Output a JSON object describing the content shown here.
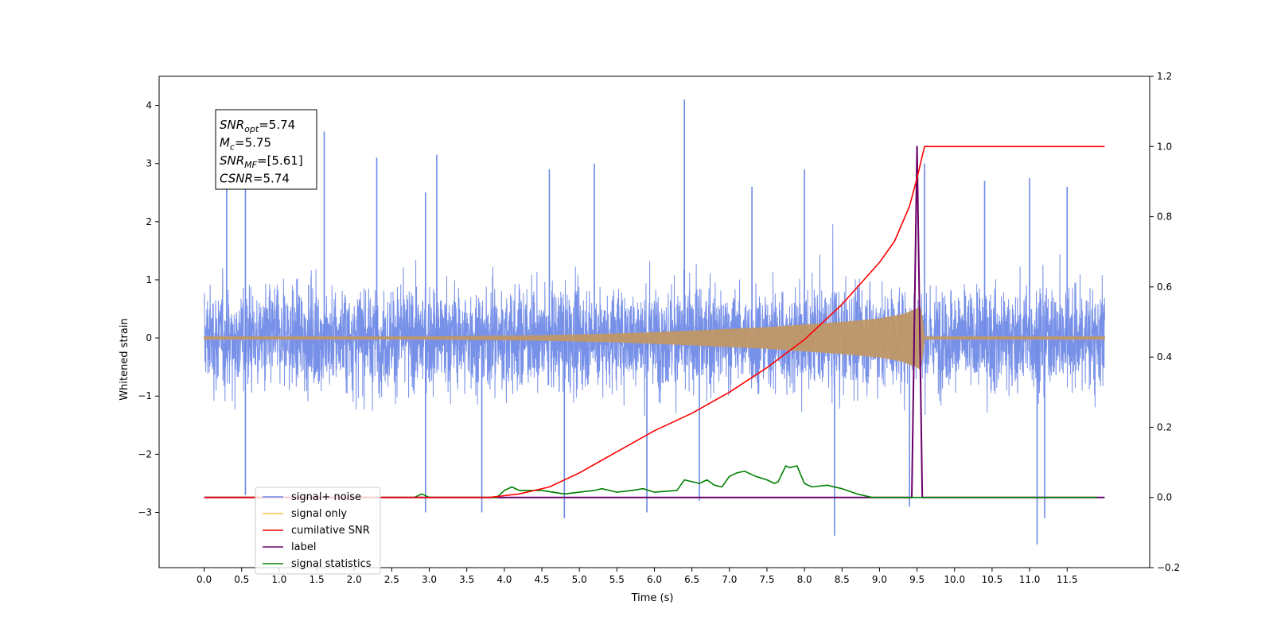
{
  "chart_data": {
    "type": "line",
    "xlabel": "Time (s)",
    "ylabel": "Whitened strain",
    "xlim": [
      -0.6,
      12.6
    ],
    "ylim": [
      -3.95,
      4.5
    ],
    "y2lim": [
      -0.2,
      1.2
    ],
    "x_ticks": [
      "0.0",
      "0.5",
      "1.0",
      "1.5",
      "2.0",
      "2.5",
      "3.0",
      "3.5",
      "4.0",
      "4.5",
      "5.0",
      "5.5",
      "6.0",
      "6.5",
      "7.0",
      "7.5",
      "8.0",
      "8.5",
      "9.0",
      "9.5",
      "10.0",
      "10.5",
      "11.0",
      "11.5"
    ],
    "y_ticks": [
      "−3",
      "−2",
      "−1",
      "0",
      "1",
      "2",
      "3",
      "4"
    ],
    "y2_ticks": [
      "−0.2",
      "0.0",
      "0.2",
      "0.4",
      "0.6",
      "0.8",
      "1.0",
      "1.2"
    ],
    "grid": false,
    "legend_position": "lower-left",
    "annotation": {
      "lines": [
        {
          "base": "SNR",
          "sub": "opt",
          "rest": "=5.74"
        },
        {
          "base": "M",
          "sub": "c",
          "rest": "=5.75"
        },
        {
          "base": "SNR",
          "sub": "MF",
          "rest": "=[5.61]"
        },
        {
          "base": "CSNR",
          "sub": "",
          "rest": "=5.74"
        }
      ]
    },
    "series": [
      {
        "name": "signal+ noise",
        "color": "#6c88e6",
        "axis": "left",
        "description_values": {
          "noise_band": [
            -1.5,
            1.7
          ],
          "peak_x": [
            0.3,
            0.55,
            1.6,
            2.3,
            2.95,
            3.1,
            4.6,
            5.2,
            6.4,
            7.3,
            8.0,
            9.6,
            10.4,
            11.0,
            11.5
          ],
          "peak_y": [
            2.7,
            2.6,
            3.55,
            3.1,
            2.5,
            3.15,
            2.9,
            3.0,
            4.1,
            2.6,
            2.9,
            3.0,
            2.7,
            2.75,
            2.6
          ],
          "trough_x": [
            0.55,
            2.95,
            3.7,
            4.8,
            5.9,
            6.6,
            8.4,
            9.4,
            11.1,
            11.2
          ],
          "trough_y": [
            -2.7,
            -3.0,
            -3.0,
            -3.1,
            -3.0,
            -2.8,
            -3.4,
            -2.9,
            -3.55,
            -3.1
          ]
        }
      },
      {
        "name": "signal only",
        "color": "#ffc04d",
        "axis": "left",
        "envelope_x": [
          0.0,
          3.0,
          4.5,
          5.5,
          6.5,
          7.5,
          8.5,
          9.0,
          9.3,
          9.5,
          9.55,
          9.6,
          12.0
        ],
        "envelope_y": [
          0.02,
          0.02,
          0.04,
          0.07,
          0.12,
          0.18,
          0.27,
          0.33,
          0.4,
          0.5,
          0.55,
          0.02,
          0.02
        ]
      },
      {
        "name": "cumilative SNR",
        "color": "#ff0000",
        "axis": "right",
        "x": [
          0.0,
          3.8,
          4.2,
          4.6,
          5.0,
          5.5,
          6.0,
          6.5,
          7.0,
          7.5,
          8.0,
          8.5,
          9.0,
          9.2,
          9.4,
          9.5,
          9.6,
          12.0
        ],
        "y": [
          0.0,
          0.0,
          0.01,
          0.03,
          0.07,
          0.13,
          0.19,
          0.24,
          0.3,
          0.37,
          0.45,
          0.55,
          0.67,
          0.73,
          0.83,
          0.91,
          1.0,
          1.0
        ]
      },
      {
        "name": "label",
        "color": "#6a006a",
        "axis": "right",
        "x": [
          0.0,
          9.43,
          9.5,
          9.57,
          9.6,
          12.0
        ],
        "y": [
          0.0,
          0.0,
          1.0,
          0.0,
          0.0,
          0.0
        ]
      },
      {
        "name": "signal statistics",
        "color": "#008000",
        "axis": "right",
        "x": [
          0.0,
          2.8,
          2.9,
          3.0,
          3.5,
          3.9,
          4.0,
          4.1,
          4.2,
          4.5,
          4.8,
          5.0,
          5.2,
          5.3,
          5.5,
          5.7,
          5.85,
          6.0,
          6.3,
          6.4,
          6.6,
          6.7,
          6.8,
          6.9,
          7.0,
          7.1,
          7.2,
          7.35,
          7.5,
          7.6,
          7.65,
          7.75,
          7.8,
          7.9,
          8.0,
          8.1,
          8.3,
          8.5,
          8.7,
          8.9,
          9.0,
          9.5,
          11.9
        ],
        "y": [
          0.0,
          0.0,
          0.01,
          0.0,
          0.0,
          0.0,
          0.02,
          0.03,
          0.02,
          0.02,
          0.01,
          0.015,
          0.02,
          0.025,
          0.015,
          0.02,
          0.025,
          0.015,
          0.02,
          0.05,
          0.04,
          0.05,
          0.035,
          0.03,
          0.06,
          0.07,
          0.075,
          0.06,
          0.05,
          0.04,
          0.045,
          0.09,
          0.085,
          0.09,
          0.04,
          0.03,
          0.035,
          0.025,
          0.01,
          0.0,
          0.0,
          0.0,
          0.0
        ]
      }
    ],
    "legend_entries": [
      {
        "label": "signal+ noise",
        "color": "#6c88e6"
      },
      {
        "label": "signal only",
        "color": "#ffc04d"
      },
      {
        "label": "cumilative SNR",
        "color": "#ff0000"
      },
      {
        "label": "label",
        "color": "#6a006a"
      },
      {
        "label": "signal statistics",
        "color": "#008000"
      }
    ]
  }
}
